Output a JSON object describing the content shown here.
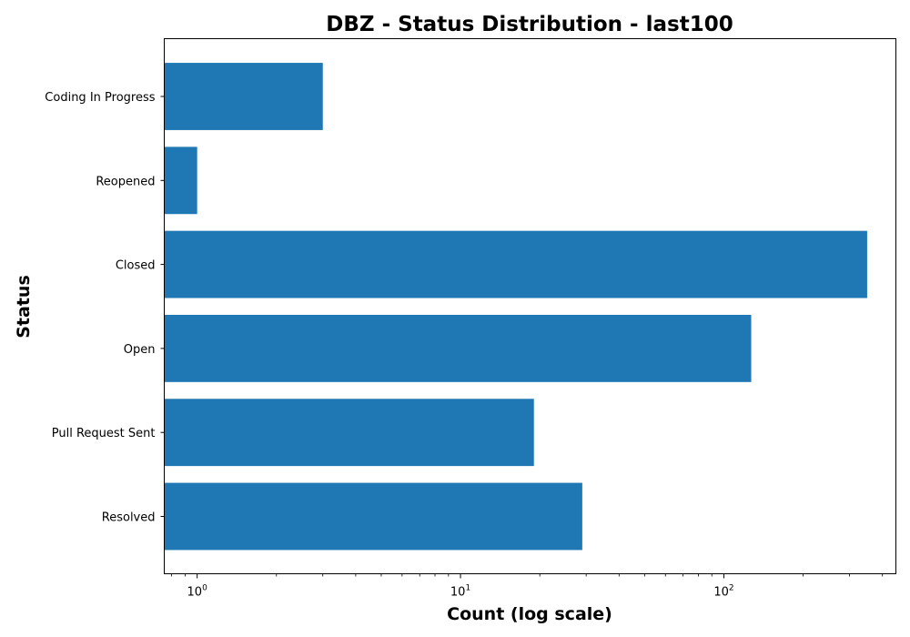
{
  "chart_data": {
    "type": "bar",
    "orientation": "horizontal",
    "title": "DBZ - Status Distribution - last100",
    "xlabel": "Count (log scale)",
    "ylabel": "Status",
    "xscale": "log",
    "xlim": [
      0.75,
      450
    ],
    "categories": [
      "Coding In Progress",
      "Reopened",
      "Closed",
      "Open",
      "Pull Request Sent",
      "Resolved"
    ],
    "values": [
      3,
      1,
      350,
      127,
      19,
      29
    ],
    "x_tick_labels": [
      {
        "base": "10",
        "exp": "0",
        "value": 1
      },
      {
        "base": "10",
        "exp": "1",
        "value": 10
      },
      {
        "base": "10",
        "exp": "2",
        "value": 100
      }
    ],
    "bar_color": "#1f77b4",
    "grid": false,
    "legend": "none"
  }
}
